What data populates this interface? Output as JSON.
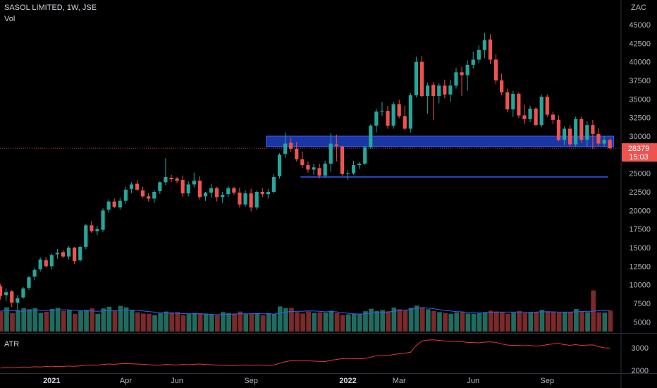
{
  "header": {
    "symbol": "SASOL LIMITED, 1W, JSE",
    "vol_label": "Vol",
    "atr_label": "ATR",
    "currency": "ZAC"
  },
  "colors": {
    "up": "#26a69a",
    "down": "#ef5350",
    "vol_up": "#1f6b5f",
    "vol_down": "#7a2a2a",
    "vol_ma": "#2962ff",
    "atr": "#e53935",
    "zone": "#1e3fbf",
    "support": "#2962ff",
    "price_tag": "#ef5350"
  },
  "chart_data": {
    "type": "candlestick",
    "title": "SASOL LIMITED, 1W, JSE",
    "currency": "ZAC",
    "price_axis_ticks": [
      45000,
      42500,
      40000,
      37500,
      35000,
      32500,
      30000,
      27500,
      25000,
      22500,
      20000,
      17500,
      15000,
      12500,
      10000,
      7500,
      5000
    ],
    "atr_axis_ticks": [
      3000,
      2000
    ],
    "time_labels": [
      {
        "text": "2021",
        "bold": true,
        "week": 9
      },
      {
        "text": "Apr",
        "bold": false,
        "week": 22
      },
      {
        "text": "Jun",
        "bold": false,
        "week": 31
      },
      {
        "text": "Sep",
        "bold": false,
        "week": 44
      },
      {
        "text": "2022",
        "bold": true,
        "week": 61
      },
      {
        "text": "Mar",
        "bold": false,
        "week": 70
      },
      {
        "text": "Jun",
        "bold": false,
        "week": 83
      },
      {
        "text": "Sep",
        "bold": false,
        "week": 96
      }
    ],
    "last_price": "28379",
    "countdown": "15:03",
    "resistance_zone": {
      "low": 28600,
      "high": 30000,
      "from_week": 47,
      "to_week": 108
    },
    "support_line": {
      "price": 24500,
      "from_week": 53,
      "to_week": 107
    },
    "ohlc": [
      [
        9800,
        10100,
        8000,
        8500
      ],
      [
        8600,
        9500,
        7800,
        9000
      ],
      [
        9100,
        9300,
        7000,
        7600
      ],
      [
        7600,
        8600,
        6500,
        8200
      ],
      [
        8300,
        9700,
        8100,
        9500
      ],
      [
        9600,
        11200,
        9300,
        11000
      ],
      [
        11100,
        12300,
        10600,
        12000
      ],
      [
        12100,
        13700,
        11800,
        13400
      ],
      [
        13300,
        13700,
        12300,
        12500
      ],
      [
        12500,
        14200,
        12100,
        14000
      ],
      [
        14100,
        14800,
        13500,
        14300
      ],
      [
        14400,
        14700,
        13600,
        13800
      ],
      [
        13800,
        15200,
        13400,
        15000
      ],
      [
        15000,
        15100,
        12800,
        13200
      ],
      [
        13300,
        15300,
        13100,
        15100
      ],
      [
        15100,
        18200,
        14800,
        18000
      ],
      [
        18000,
        18600,
        17000,
        17200
      ],
      [
        17200,
        17900,
        16700,
        17500
      ],
      [
        17400,
        20300,
        17100,
        20000
      ],
      [
        20100,
        21500,
        19700,
        21200
      ],
      [
        21200,
        21600,
        20300,
        20500
      ],
      [
        20400,
        21700,
        20100,
        21300
      ],
      [
        21300,
        23200,
        20900,
        22800
      ],
      [
        22900,
        23800,
        22300,
        23500
      ],
      [
        23600,
        24100,
        22600,
        22800
      ],
      [
        22700,
        23200,
        21700,
        21900
      ],
      [
        21900,
        22300,
        21200,
        21600
      ],
      [
        21600,
        22800,
        21000,
        22500
      ],
      [
        22600,
        23900,
        22200,
        23800
      ],
      [
        23800,
        27000,
        23400,
        24500
      ],
      [
        24400,
        24800,
        23800,
        24200
      ],
      [
        24300,
        24500,
        23700,
        24000
      ],
      [
        24100,
        24700,
        21800,
        22300
      ],
      [
        22300,
        23900,
        21900,
        23500
      ],
      [
        23500,
        25100,
        23100,
        24000
      ],
      [
        24000,
        24600,
        21500,
        21800
      ],
      [
        21900,
        22500,
        21300,
        22400
      ],
      [
        22400,
        23600,
        21700,
        23000
      ],
      [
        23000,
        23200,
        21200,
        21800
      ],
      [
        21800,
        22500,
        21000,
        22100
      ],
      [
        22200,
        23300,
        21800,
        23000
      ],
      [
        23000,
        23200,
        22100,
        22400
      ],
      [
        22400,
        23100,
        20400,
        20800
      ],
      [
        20800,
        22700,
        20500,
        22300
      ],
      [
        22300,
        22900,
        19900,
        20400
      ],
      [
        20400,
        22700,
        20100,
        22500
      ],
      [
        22500,
        23000,
        21800,
        22200
      ],
      [
        22200,
        22900,
        21600,
        22500
      ],
      [
        22500,
        24900,
        22300,
        24500
      ],
      [
        24600,
        27700,
        24300,
        27500
      ],
      [
        27600,
        30500,
        27100,
        29000
      ],
      [
        29100,
        29800,
        27900,
        28300
      ],
      [
        28300,
        29200,
        26600,
        26900
      ],
      [
        26900,
        27900,
        25700,
        26100
      ],
      [
        26100,
        26600,
        25100,
        25500
      ],
      [
        25500,
        26300,
        24800,
        25800
      ],
      [
        25700,
        26300,
        24300,
        24700
      ],
      [
        24700,
        26700,
        24400,
        26300
      ],
      [
        26300,
        30400,
        25200,
        29000
      ],
      [
        28900,
        30200,
        26600,
        28700
      ],
      [
        28600,
        28700,
        24700,
        24900
      ],
      [
        24900,
        25400,
        24100,
        25000
      ],
      [
        25000,
        26700,
        24800,
        26100
      ],
      [
        26100,
        26500,
        25600,
        26300
      ],
      [
        26300,
        28700,
        26100,
        28500
      ],
      [
        28500,
        31600,
        28300,
        31400
      ],
      [
        31400,
        33700,
        30500,
        33300
      ],
      [
        33300,
        34600,
        32700,
        33400
      ],
      [
        33400,
        34100,
        31000,
        31400
      ],
      [
        31400,
        34600,
        31000,
        34300
      ],
      [
        34300,
        34900,
        32400,
        32700
      ],
      [
        32700,
        34100,
        30800,
        31000
      ],
      [
        31000,
        35800,
        30500,
        35500
      ],
      [
        35500,
        40700,
        35200,
        40000
      ],
      [
        40000,
        40800,
        35200,
        35400
      ],
      [
        35400,
        37200,
        33000,
        36800
      ],
      [
        36900,
        37300,
        32200,
        35400
      ],
      [
        35400,
        37100,
        34400,
        36800
      ],
      [
        36800,
        37600,
        35100,
        35600
      ],
      [
        35600,
        37600,
        34600,
        36800
      ],
      [
        36800,
        39200,
        36400,
        38600
      ],
      [
        38600,
        39300,
        35400,
        38200
      ],
      [
        38200,
        40200,
        36100,
        39600
      ],
      [
        39600,
        41400,
        39100,
        40300
      ],
      [
        40300,
        42200,
        39800,
        41600
      ],
      [
        41600,
        43900,
        40500,
        42900
      ],
      [
        43000,
        43700,
        39700,
        40300
      ],
      [
        40300,
        41000,
        37000,
        37500
      ],
      [
        37500,
        38400,
        35500,
        35900
      ],
      [
        35900,
        36400,
        33200,
        33600
      ],
      [
        33600,
        36100,
        32600,
        35700
      ],
      [
        35700,
        35900,
        32400,
        32800
      ],
      [
        32800,
        34200,
        31600,
        32300
      ],
      [
        32300,
        34100,
        31900,
        33700
      ],
      [
        33700,
        33900,
        31300,
        31500
      ],
      [
        31500,
        35600,
        31200,
        35300
      ],
      [
        35300,
        35600,
        32600,
        32900
      ],
      [
        32900,
        33300,
        31600,
        32200
      ],
      [
        32200,
        32800,
        29300,
        29500
      ],
      [
        29500,
        31300,
        28800,
        31000
      ],
      [
        31000,
        31500,
        28600,
        28900
      ],
      [
        28900,
        32600,
        28600,
        32300
      ],
      [
        32300,
        32600,
        29100,
        29500
      ],
      [
        29500,
        32000,
        28600,
        31500
      ],
      [
        31500,
        32200,
        28300,
        30300
      ],
      [
        30300,
        31100,
        28700,
        29000
      ],
      [
        29000,
        30000,
        28600,
        29500
      ],
      [
        29500,
        29800,
        28200,
        28379
      ]
    ],
    "volume": [
      7200,
      8600,
      6500,
      7600,
      8300,
      7900,
      8300,
      6600,
      7000,
      8000,
      8400,
      7300,
      7600,
      6300,
      7300,
      7700,
      8200,
      6300,
      8200,
      8800,
      7300,
      9100,
      8600,
      7700,
      6800,
      6400,
      6300,
      5800,
      6500,
      7100,
      6800,
      6900,
      5800,
      6300,
      6600,
      6500,
      6400,
      6100,
      5800,
      6900,
      6500,
      6400,
      7100,
      6200,
      6300,
      6400,
      5800,
      6500,
      6300,
      8900,
      8300,
      8400,
      6900,
      6400,
      7100,
      6600,
      6800,
      6700,
      7400,
      6600,
      5900,
      6100,
      6300,
      6200,
      7200,
      8100,
      7300,
      7600,
      7200,
      8500,
      7900,
      7600,
      8400,
      9200,
      8600,
      7900,
      7300,
      6900,
      6600,
      6300,
      6800,
      6900,
      6400,
      6300,
      6600,
      6900,
      7400,
      7100,
      6800,
      6300,
      6700,
      7300,
      6600,
      6800,
      6900,
      7700,
      7200,
      6900,
      6700,
      6800,
      7000,
      8000,
      7200,
      6900,
      14600,
      6800,
      6700,
      7400
    ],
    "volume_ma": [
      7300,
      7400,
      7400,
      7300,
      7200,
      7400,
      7600,
      7500,
      7400,
      7500,
      7700,
      7700,
      7700,
      7500,
      7400,
      7300,
      7300,
      7200,
      7300,
      7400,
      7400,
      7500,
      7600,
      7600,
      7500,
      7300,
      7100,
      6900,
      6700,
      6600,
      6500,
      6500,
      6400,
      6300,
      6300,
      6300,
      6200,
      6100,
      6000,
      6100,
      6100,
      6200,
      6300,
      6300,
      6300,
      6400,
      6300,
      6300,
      6200,
      6600,
      6900,
      7100,
      7200,
      7200,
      7300,
      7300,
      7200,
      7000,
      7100,
      7000,
      6700,
      6500,
      6300,
      6200,
      6300,
      6500,
      6700,
      6800,
      6900,
      7200,
      7400,
      7600,
      7800,
      8200,
      8400,
      8300,
      8100,
      7800,
      7500,
      7300,
      7100,
      7000,
      6800,
      6700,
      6600,
      6600,
      6800,
      6900,
      6900,
      6900,
      6900,
      6900,
      6900,
      6800,
      6900,
      7000,
      7000,
      7000,
      6900,
      6900,
      6900,
      7000,
      7100,
      7200,
      7200,
      7400,
      7500,
      7400
    ],
    "atr": [
      2100,
      2120,
      2110,
      2130,
      2150,
      2140,
      2160,
      2150,
      2170,
      2160,
      2180,
      2170,
      2190,
      2180,
      2200,
      2230,
      2240,
      2230,
      2260,
      2280,
      2270,
      2290,
      2300,
      2290,
      2280,
      2270,
      2250,
      2240,
      2230,
      2260,
      2250,
      2240,
      2260,
      2250,
      2270,
      2280,
      2260,
      2250,
      2240,
      2230,
      2220,
      2210,
      2230,
      2240,
      2230,
      2240,
      2230,
      2220,
      2240,
      2310,
      2380,
      2430,
      2440,
      2450,
      2420,
      2410,
      2400,
      2390,
      2450,
      2480,
      2520,
      2530,
      2520,
      2510,
      2530,
      2580,
      2650,
      2640,
      2660,
      2700,
      2740,
      2760,
      2800,
      3100,
      3300,
      3340,
      3350,
      3330,
      3300,
      3290,
      3280,
      3270,
      3240,
      3230,
      3220,
      3250,
      3260,
      3240,
      3170,
      3120,
      3110,
      3100,
      3090,
      3100,
      3080,
      3090,
      3140,
      3170,
      3190,
      3140,
      3110,
      3140,
      3100,
      3120,
      3130,
      3050,
      3000,
      2990
    ]
  }
}
